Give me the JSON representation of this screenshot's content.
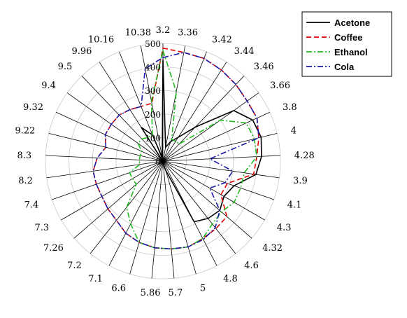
{
  "chart_data": {
    "type": "radar",
    "categories": [
      "3.2",
      "3.36",
      "3.42",
      "3.44",
      "3.46",
      "3.66",
      "3.8",
      "4",
      "4.28",
      "3.9",
      "4.1",
      "4.3",
      "4.32",
      "4.6",
      "4.8",
      "5",
      "5.7",
      "5.86",
      "6.6",
      "7.1",
      "7.2",
      "7.26",
      "7.3",
      "7.4",
      "8.2",
      "8.3",
      "9.22",
      "9.32",
      "9.4",
      "9.5",
      "9.96",
      "10.16",
      "10.38"
    ],
    "radial_ticks": [
      0,
      100,
      200,
      300,
      400,
      500
    ],
    "rmax": 500,
    "legend_position": "top-right",
    "series": [
      {
        "name": "Acetone",
        "color": "#000000",
        "dash": "solid",
        "values": [
          430,
          60,
          90,
          120,
          200,
          370,
          420,
          430,
          420,
          400,
          320,
          300,
          320,
          310,
          290,
          40,
          10,
          10,
          5,
          5,
          5,
          5,
          5,
          5,
          5,
          5,
          5,
          5,
          5,
          5,
          170,
          120,
          15
        ]
      },
      {
        "name": "Coffee",
        "color": "#e00000",
        "dash": "dash",
        "values": [
          480,
          470,
          470,
          460,
          450,
          440,
          440,
          420,
          400,
          390,
          290,
          285,
          360,
          365,
          370,
          380,
          375,
          370,
          360,
          345,
          320,
          310,
          300,
          300,
          300,
          280,
          250,
          270,
          270,
          270,
          260,
          250,
          250
        ]
      },
      {
        "name": "Ethanol",
        "color": "#22bb22",
        "dash": "dashdot",
        "values": [
          470,
          300,
          100,
          100,
          100,
          300,
          390,
          400,
          400,
          350,
          350,
          350,
          330,
          340,
          370,
          380,
          375,
          370,
          360,
          300,
          250,
          150,
          150,
          150,
          100,
          100,
          100,
          100,
          130,
          130,
          120,
          120,
          260
        ]
      },
      {
        "name": "Cola",
        "color": "#1a1aa6",
        "dash": "dashdot",
        "values": [
          440,
          470,
          470,
          460,
          450,
          440,
          440,
          420,
          200,
          300,
          280,
          230,
          320,
          360,
          375,
          380,
          375,
          370,
          360,
          345,
          320,
          310,
          300,
          300,
          300,
          280,
          250,
          270,
          270,
          270,
          260,
          250,
          400
        ]
      }
    ]
  }
}
